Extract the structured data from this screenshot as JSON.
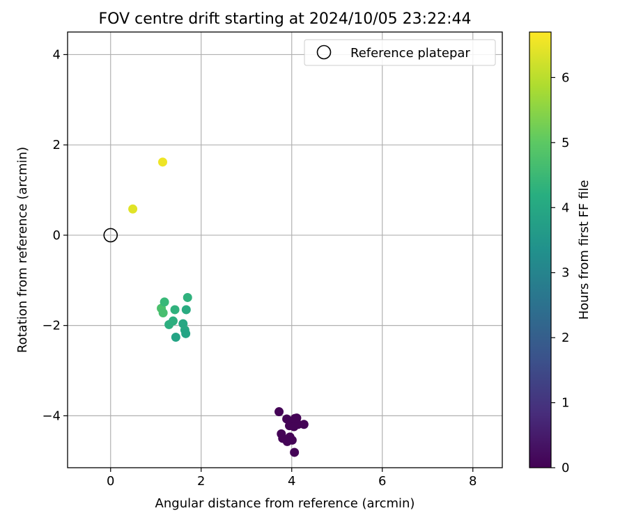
{
  "chart_data": {
    "type": "scatter",
    "title": "FOV centre drift starting at 2024/10/05 23:22:44",
    "xlabel": "Angular distance from reference (arcmin)",
    "ylabel": "Rotation from reference (arcmin)",
    "xlim": [
      -0.95,
      8.65
    ],
    "ylim": [
      -5.15,
      4.5
    ],
    "xticks": [
      0,
      2,
      4,
      6,
      8
    ],
    "yticks": [
      -4,
      -2,
      0,
      2,
      4
    ],
    "grid": true,
    "legend": {
      "placement": "top-right",
      "entries": [
        "Reference platepar"
      ]
    },
    "reference_point": {
      "x": 0,
      "y": 0,
      "label": "Reference platepar"
    },
    "colorbar": {
      "label": "Hours from first FF file",
      "range": [
        0,
        6.7
      ],
      "ticks": [
        0,
        1,
        2,
        3,
        4,
        5,
        6
      ],
      "colormap": "viridis"
    },
    "points": [
      {
        "x": 1.15,
        "y": 1.62,
        "c": 6.55
      },
      {
        "x": 0.49,
        "y": 0.58,
        "c": 6.4
      },
      {
        "x": 1.12,
        "y": -1.62,
        "c": 4.75
      },
      {
        "x": 1.16,
        "y": -1.72,
        "c": 4.7
      },
      {
        "x": 1.19,
        "y": -1.48,
        "c": 4.5
      },
      {
        "x": 1.42,
        "y": -1.65,
        "c": 4.3
      },
      {
        "x": 1.7,
        "y": -1.38,
        "c": 4.3
      },
      {
        "x": 1.67,
        "y": -1.65,
        "c": 4.1
      },
      {
        "x": 1.38,
        "y": -1.9,
        "c": 4.2
      },
      {
        "x": 1.29,
        "y": -1.98,
        "c": 4.2
      },
      {
        "x": 1.6,
        "y": -1.96,
        "c": 4.0
      },
      {
        "x": 1.64,
        "y": -2.1,
        "c": 4.0
      },
      {
        "x": 1.66,
        "y": -2.18,
        "c": 3.9
      },
      {
        "x": 1.44,
        "y": -2.26,
        "c": 3.9
      },
      {
        "x": 3.72,
        "y": -3.91,
        "c": 0.05
      },
      {
        "x": 3.89,
        "y": -4.07,
        "c": 0.05
      },
      {
        "x": 4.07,
        "y": -4.06,
        "c": 0.05
      },
      {
        "x": 4.11,
        "y": -4.05,
        "c": 0.05
      },
      {
        "x": 4.0,
        "y": -4.15,
        "c": 0.05
      },
      {
        "x": 4.27,
        "y": -4.19,
        "c": 0.05
      },
      {
        "x": 4.14,
        "y": -4.19,
        "c": 0.05
      },
      {
        "x": 3.95,
        "y": -4.22,
        "c": 0.05
      },
      {
        "x": 4.05,
        "y": -4.24,
        "c": 0.05
      },
      {
        "x": 3.77,
        "y": -4.4,
        "c": 0.05
      },
      {
        "x": 3.8,
        "y": -4.5,
        "c": 0.05
      },
      {
        "x": 3.96,
        "y": -4.47,
        "c": 0.05
      },
      {
        "x": 4.01,
        "y": -4.54,
        "c": 0.05
      },
      {
        "x": 3.9,
        "y": -4.57,
        "c": 0.05
      },
      {
        "x": 4.06,
        "y": -4.81,
        "c": 0.05
      }
    ]
  }
}
